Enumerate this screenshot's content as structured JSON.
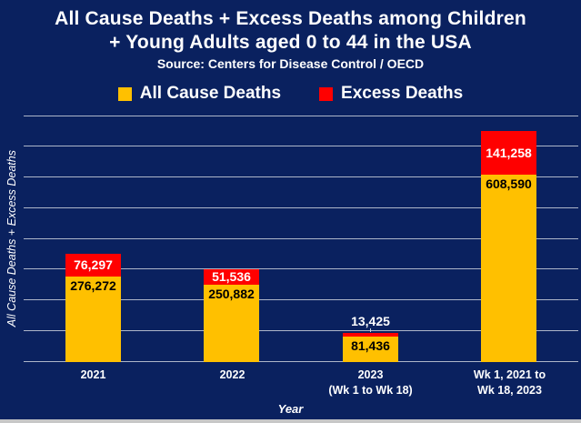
{
  "chart_data": {
    "type": "bar",
    "stacked": true,
    "title": "All Cause Deaths + Excess Deaths among Children + Young Adults aged 0 to 44 in the USA",
    "title_line1": "All Cause Deaths + Excess Deaths among Children",
    "title_line2": "+ Young Adults aged 0 to 44 in the USA",
    "subtitle": "Source: Centers for Disease Control / OECD",
    "xlabel": "Year",
    "ylabel": "All Cause Deaths + Excess Deaths",
    "categories": [
      {
        "lines": [
          "2021"
        ]
      },
      {
        "lines": [
          "2022"
        ]
      },
      {
        "lines": [
          "2023",
          "(Wk 1 to Wk 18)"
        ]
      },
      {
        "lines": [
          "Wk 1, 2021 to",
          "Wk 18, 2023"
        ]
      }
    ],
    "series": [
      {
        "name": "All Cause Deaths",
        "color": "#FFC000",
        "label_color": "#000000",
        "values": [
          276272,
          250882,
          81436,
          608590
        ]
      },
      {
        "name": "Excess Deaths",
        "color": "#FF0000",
        "label_color": "#FFFFFF",
        "values": [
          76297,
          51536,
          13425,
          141258
        ]
      }
    ],
    "ylim": [
      0,
      800000
    ],
    "gridline_interval": 100000,
    "grid": "horizontal",
    "legend_position": "top",
    "value_label_format": "#,###"
  },
  "colors": {
    "background": "#0A215F",
    "gridline": "#AEB6C9",
    "text": "#FFFFFF",
    "bottom_strip": "#C7C7C7"
  }
}
